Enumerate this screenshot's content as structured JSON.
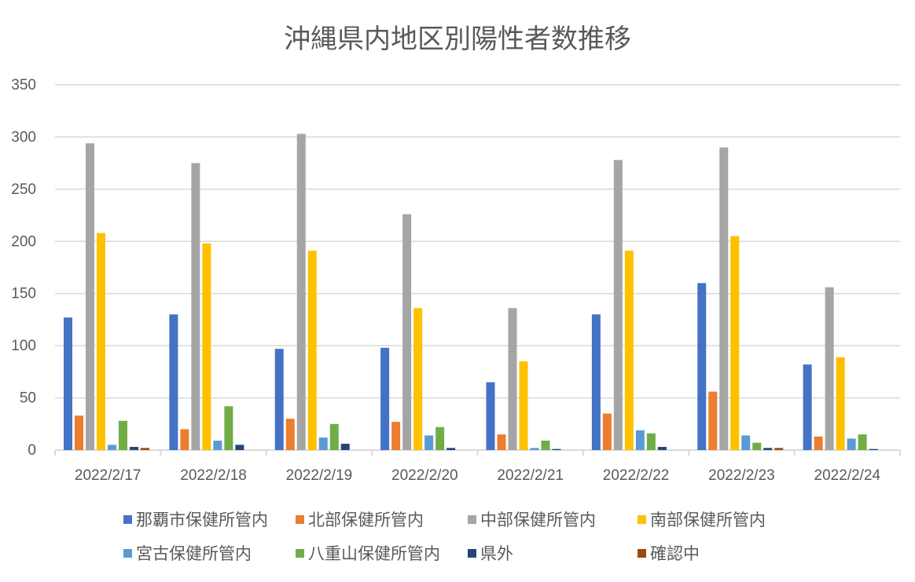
{
  "chart_data": {
    "type": "bar",
    "title": "沖縄県内地区別陽性者数推移",
    "xlabel": "",
    "ylabel": "",
    "ylim": [
      0,
      350
    ],
    "yticks": [
      0,
      50,
      100,
      150,
      200,
      250,
      300,
      350
    ],
    "grid": true,
    "legend_position": "bottom",
    "categories": [
      "2022/2/17",
      "2022/2/18",
      "2022/2/19",
      "2022/2/20",
      "2022/2/21",
      "2022/2/22",
      "2022/2/23",
      "2022/2/24"
    ],
    "series": [
      {
        "name": "那覇市保健所管内",
        "color": "#4472C4",
        "values": [
          127,
          130,
          97,
          98,
          65,
          130,
          160,
          82
        ]
      },
      {
        "name": "北部保健所管内",
        "color": "#ED7D31",
        "values": [
          33,
          20,
          30,
          27,
          15,
          35,
          56,
          13
        ]
      },
      {
        "name": "中部保健所管内",
        "color": "#A5A5A5",
        "values": [
          294,
          275,
          303,
          226,
          136,
          278,
          290,
          156
        ]
      },
      {
        "name": "南部保健所管内",
        "color": "#FFC000",
        "values": [
          208,
          198,
          191,
          136,
          85,
          191,
          205,
          89
        ]
      },
      {
        "name": "宮古保健所管内",
        "color": "#5B9BD5",
        "values": [
          5,
          9,
          12,
          14,
          2,
          19,
          14,
          11
        ]
      },
      {
        "name": "八重山保健所管内",
        "color": "#70AD47",
        "values": [
          28,
          42,
          25,
          22,
          9,
          16,
          7,
          15
        ]
      },
      {
        "name": "県外",
        "color": "#264478",
        "values": [
          3,
          5,
          6,
          2,
          1,
          3,
          2,
          1
        ]
      },
      {
        "name": "確認中",
        "color": "#9E480E",
        "values": [
          2,
          0,
          0,
          0,
          0,
          0,
          2,
          0
        ]
      }
    ]
  }
}
